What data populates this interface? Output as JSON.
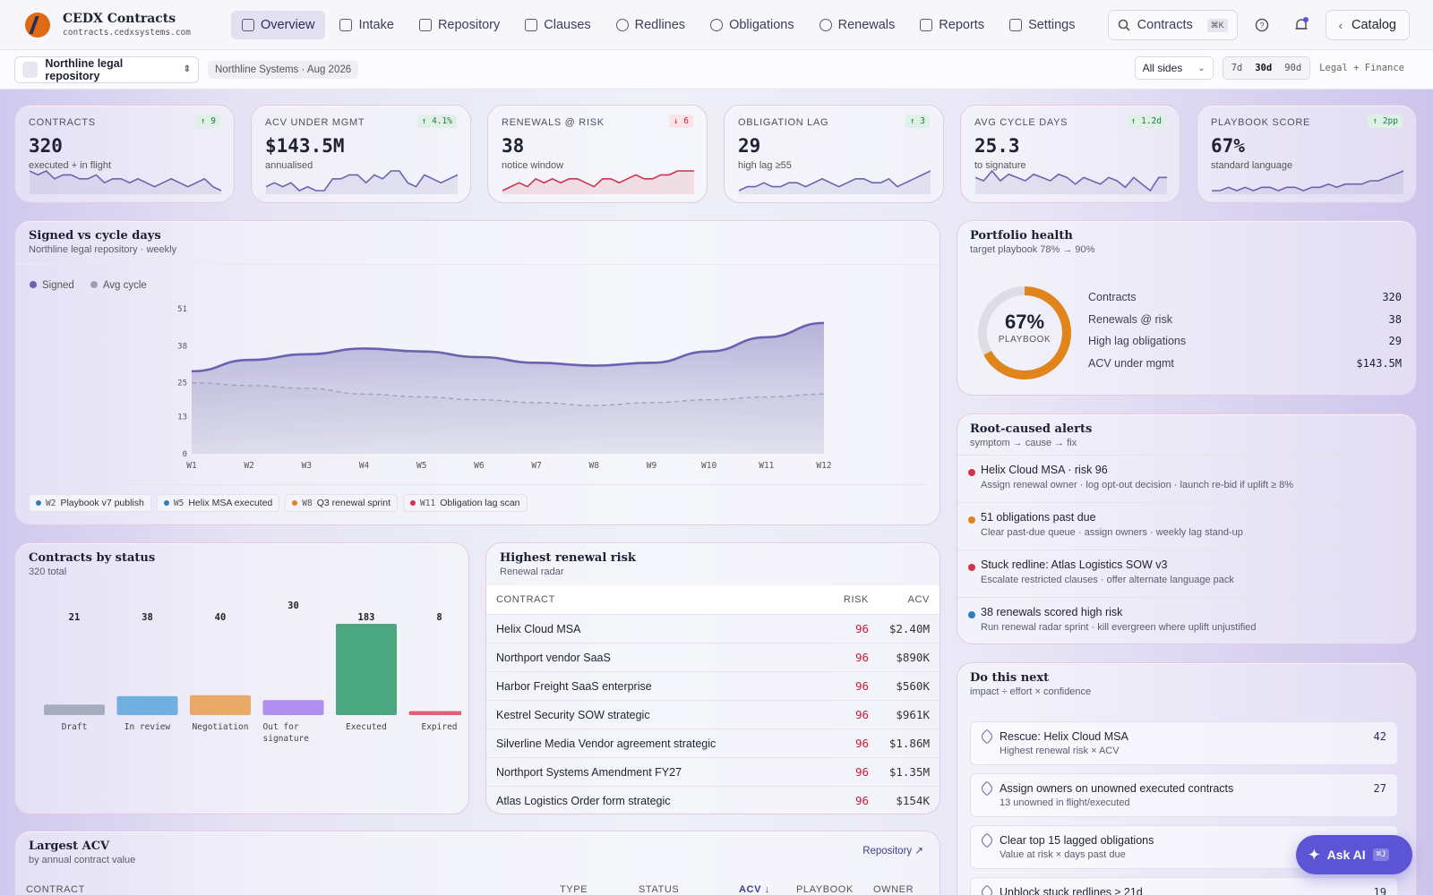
{
  "brand": {
    "title": "CEDX Contracts",
    "domain": "contracts.cedxsystems.com"
  },
  "nav": [
    {
      "label": "Overview",
      "icon": "grid-icon",
      "active": true
    },
    {
      "label": "Intake",
      "icon": "inbox-icon"
    },
    {
      "label": "Repository",
      "icon": "book-icon"
    },
    {
      "label": "Clauses",
      "icon": "document-icon"
    },
    {
      "label": "Redlines",
      "icon": "help-circle-icon"
    },
    {
      "label": "Obligations",
      "icon": "timer-icon"
    },
    {
      "label": "Renewals",
      "icon": "target-icon"
    },
    {
      "label": "Reports",
      "icon": "bar-chart-icon"
    },
    {
      "label": "Settings",
      "icon": "sliders-icon"
    }
  ],
  "search": {
    "label": "Contracts",
    "shortcut": "⌘K"
  },
  "catalog": {
    "label": "Catalog"
  },
  "subbar": {
    "repository": "Northline legal repository",
    "context": "Northline Systems · Aug 2026",
    "sides": "All sides",
    "ranges": [
      "7d",
      "30d",
      "90d"
    ],
    "active_range": "30d",
    "scope": "Legal + Finance"
  },
  "kpis": [
    {
      "label": "CONTRACTS",
      "delta": "↑ 9",
      "dir": "up",
      "value": "320",
      "sub": "executed + in flight",
      "spark": [
        6,
        5,
        6,
        4,
        5,
        5,
        4,
        4,
        5,
        3,
        4,
        4,
        3,
        4,
        3,
        2,
        3,
        4,
        3,
        2,
        3,
        4,
        2,
        1
      ],
      "color": "#6b63ae"
    },
    {
      "label": "ACV UNDER MGMT",
      "delta": "↑ 4.1%",
      "dir": "up",
      "value": "$143.5M",
      "sub": "annualised",
      "spark": [
        2,
        3,
        2,
        3,
        1,
        2,
        1,
        1,
        4,
        4,
        5,
        5,
        3,
        5,
        4,
        6,
        6,
        3,
        2,
        5,
        4,
        3,
        4,
        5
      ],
      "color": "#6b63ae"
    },
    {
      "label": "RENEWALS @ RISK",
      "delta": "↓ 6",
      "dir": "down",
      "value": "38",
      "sub": "notice window",
      "spark": [
        2,
        3,
        4,
        3,
        5,
        4,
        5,
        4,
        5,
        5,
        4,
        3,
        5,
        5,
        4,
        5,
        6,
        5,
        5,
        6,
        6,
        7,
        7,
        7
      ],
      "color": "#d4314c"
    },
    {
      "label": "OBLIGATION LAG",
      "delta": "↑ 3",
      "dir": "up",
      "value": "29",
      "sub": "high lag ≥55",
      "spark": [
        2,
        3,
        3,
        4,
        3,
        3,
        4,
        4,
        3,
        4,
        5,
        4,
        3,
        4,
        5,
        5,
        4,
        4,
        5,
        3,
        4,
        5,
        6,
        7
      ],
      "color": "#6b63ae"
    },
    {
      "label": "AVG CYCLE DAYS",
      "delta": "↑ 1.2d",
      "dir": "up",
      "value": "25.3",
      "sub": "to signature",
      "spark": [
        5,
        4,
        7,
        4,
        6,
        5,
        4,
        6,
        5,
        4,
        6,
        5,
        3,
        5,
        4,
        3,
        5,
        4,
        2,
        5,
        3,
        1,
        5,
        5
      ],
      "color": "#6b63ae"
    },
    {
      "label": "PLAYBOOK SCORE",
      "delta": "↑ 2pp",
      "dir": "up",
      "value": "67%",
      "sub": "standard language",
      "spark": [
        2,
        2,
        3,
        2,
        3,
        2,
        3,
        3,
        2,
        3,
        3,
        2,
        3,
        3,
        4,
        3,
        4,
        4,
        4,
        5,
        5,
        6,
        7,
        8
      ],
      "color": "#6b63ae"
    }
  ],
  "chart_data": {
    "type": "area",
    "title": "Signed vs cycle days",
    "subtitle": "Northline legal repository · weekly",
    "categories": [
      "W1",
      "W2",
      "W3",
      "W4",
      "W5",
      "W6",
      "W7",
      "W8",
      "W9",
      "W10",
      "W11",
      "W12"
    ],
    "series": [
      {
        "name": "Signed",
        "values": [
          29,
          33,
          35,
          37,
          36,
          34,
          32,
          31,
          32,
          36,
          41,
          46
        ],
        "color": "#6a62b0"
      },
      {
        "name": "Avg cycle",
        "values": [
          25,
          24,
          23,
          21,
          20,
          19,
          18,
          17,
          18,
          19,
          20,
          21
        ],
        "color": "#9aa0b8"
      }
    ],
    "yticks": [
      0,
      13,
      25,
      38,
      51
    ],
    "ylim": [
      0,
      51
    ],
    "events": [
      {
        "tag": "W2",
        "label": "Playbook v7 publish",
        "color": "#2a7fc0"
      },
      {
        "tag": "W5",
        "label": "Helix MSA executed",
        "color": "#2a7fc0"
      },
      {
        "tag": "W8",
        "label": "Q3 renewal sprint",
        "color": "#e0851b"
      },
      {
        "tag": "W11",
        "label": "Obligation lag scan",
        "color": "#d4314c"
      }
    ]
  },
  "status_chart": {
    "title": "Contracts by status",
    "subtitle": "320 total",
    "bars": [
      {
        "label": "Draft",
        "value": 21,
        "color": "#9aa3b5"
      },
      {
        "label": "In review",
        "value": 38,
        "color": "#5aa6dc"
      },
      {
        "label": "Negotiation",
        "value": 40,
        "color": "#e89c4f"
      },
      {
        "label": "Out for signature",
        "value": 30,
        "color": "#a57ef0"
      },
      {
        "label": "Executed",
        "value": 183,
        "color": "#2e9a6a"
      },
      {
        "label": "Expired",
        "value": 8,
        "color": "#e0455a"
      }
    ]
  },
  "renewal_table": {
    "title": "Highest renewal risk",
    "subtitle": "Renewal radar",
    "columns": [
      "CONTRACT",
      "RISK",
      "ACV"
    ],
    "rows": [
      {
        "contract": "Helix Cloud MSA",
        "risk": "96",
        "acv": "$2.40M"
      },
      {
        "contract": "Northport vendor SaaS",
        "risk": "96",
        "acv": "$890K"
      },
      {
        "contract": "Harbor Freight SaaS enterprise",
        "risk": "96",
        "acv": "$560K"
      },
      {
        "contract": "Kestrel Security SOW strategic",
        "risk": "96",
        "acv": "$961K"
      },
      {
        "contract": "Silverline Media Vendor agreement strategic",
        "risk": "96",
        "acv": "$1.86M"
      },
      {
        "contract": "Northport Systems Amendment FY27",
        "risk": "96",
        "acv": "$1.35M"
      },
      {
        "contract": "Atlas Logistics Order form strategic",
        "risk": "96",
        "acv": "$154K"
      }
    ]
  },
  "largest_acv": {
    "title": "Largest ACV",
    "subtitle": "by annual contract value",
    "link": "Repository ↗",
    "columns": [
      "CONTRACT",
      "TYPE",
      "STATUS",
      "ACV ↓",
      "PLAYBOOK",
      "OWNER"
    ]
  },
  "portfolio": {
    "title": "Portfolio health",
    "subtitle": "target playbook 78% → 90%",
    "donut_value": "67%",
    "donut_label": "PLAYBOOK",
    "donut_fraction": 0.67,
    "stats": [
      {
        "label": "Contracts",
        "value": "320"
      },
      {
        "label": "Renewals @ risk",
        "value": "38"
      },
      {
        "label": "High lag obligations",
        "value": "29"
      },
      {
        "label": "ACV under mgmt",
        "value": "$143.5M"
      }
    ]
  },
  "alerts": {
    "title": "Root-caused alerts",
    "subtitle": "symptom → cause → fix",
    "items": [
      {
        "title": "Helix Cloud MSA · risk 96",
        "detail": "Assign renewal owner · log opt-out decision · launch re-bid if uplift ≥ 8%",
        "color": "#d4314c"
      },
      {
        "title": "51 obligations past due",
        "detail": "Clear past-due queue · assign owners · weekly lag stand-up",
        "color": "#e0851b"
      },
      {
        "title": "Stuck redline: Atlas Logistics SOW v3",
        "detail": "Escalate restricted clauses · offer alternate language pack",
        "color": "#d4314c"
      },
      {
        "title": "38 renewals scored high risk",
        "detail": "Run renewal radar sprint · kill evergreen where uplift unjustified",
        "color": "#2a7fc0"
      }
    ]
  },
  "next": {
    "title": "Do this next",
    "subtitle": "impact ÷ effort × confidence",
    "items": [
      {
        "title": "Rescue: Helix Cloud MSA",
        "detail": "Highest renewal risk × ACV",
        "score": "42"
      },
      {
        "title": "Assign owners on unowned executed contracts",
        "detail": "13 unowned in flight/executed",
        "score": "27"
      },
      {
        "title": "Clear top 15 lagged obligations",
        "detail": "Value at risk × days past due",
        "score": ""
      },
      {
        "title": "Unblock stuck redlines ≥ 21d",
        "detail": "",
        "score": "19"
      }
    ]
  },
  "askai": {
    "label": "Ask AI",
    "shortcut": "⌘J"
  }
}
